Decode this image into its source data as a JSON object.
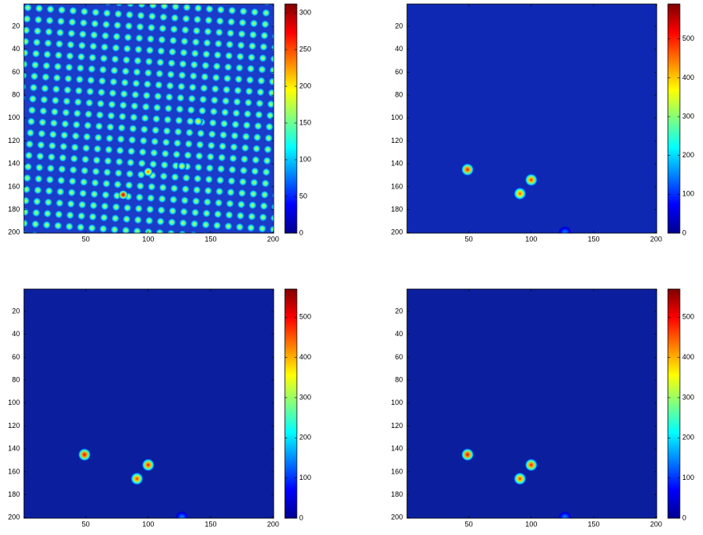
{
  "chart_data": [
    {
      "type": "heatmap",
      "xlim": [
        0.5,
        200.5
      ],
      "ylim": [
        0.5,
        200.5
      ],
      "xticks": [
        50,
        100,
        150,
        200
      ],
      "yticks": [
        20,
        40,
        60,
        80,
        100,
        120,
        140,
        160,
        180,
        200
      ],
      "clim": [
        0,
        312
      ],
      "cticks": [
        0,
        50,
        100,
        150,
        200,
        250,
        300
      ],
      "background": "#1a3cc8",
      "peaks": {
        "x": [
          80,
          100,
          140,
          127
        ],
        "y": [
          167,
          147,
          103,
          142
        ],
        "values": [
          300,
          250,
          200,
          190
        ]
      }
    },
    {
      "type": "heatmap",
      "xlim": [
        0.5,
        200.5
      ],
      "ylim": [
        0.5,
        200.5
      ],
      "xticks": [
        50,
        100,
        150,
        200
      ],
      "yticks": [
        20,
        40,
        60,
        80,
        100,
        120,
        140,
        160,
        180,
        200
      ],
      "clim": [
        0,
        590
      ],
      "cticks": [
        0,
        100,
        200,
        300,
        400,
        500
      ],
      "background": "#0e28b4",
      "peaks": {
        "x": [
          49,
          100,
          91,
          127
        ],
        "y": [
          145,
          154,
          166,
          200
        ],
        "values": [
          520,
          500,
          480,
          150
        ]
      }
    },
    {
      "type": "heatmap",
      "xlim": [
        0.5,
        200.5
      ],
      "ylim": [
        0.5,
        200.5
      ],
      "xticks": [
        50,
        100,
        150,
        200
      ],
      "yticks": [
        20,
        40,
        60,
        80,
        100,
        120,
        140,
        160,
        180,
        200
      ],
      "clim": [
        0,
        570
      ],
      "cticks": [
        0,
        100,
        200,
        300,
        400,
        500
      ],
      "background": "#0b1f9e",
      "peaks": {
        "x": [
          49,
          100,
          91,
          127
        ],
        "y": [
          145,
          154,
          166,
          200
        ],
        "values": [
          520,
          500,
          480,
          150
        ]
      }
    },
    {
      "type": "heatmap",
      "xlim": [
        0.5,
        200.5
      ],
      "ylim": [
        0.5,
        200.5
      ],
      "xticks": [
        50,
        100,
        150,
        200
      ],
      "yticks": [
        20,
        40,
        60,
        80,
        100,
        120,
        140,
        160,
        180,
        200
      ],
      "clim": [
        0,
        570
      ],
      "cticks": [
        0,
        100,
        200,
        300,
        400,
        500
      ],
      "background": "#0b1f9e",
      "peaks": {
        "x": [
          49,
          100,
          91,
          127
        ],
        "y": [
          145,
          154,
          166,
          200
        ],
        "values": [
          520,
          500,
          480,
          150
        ]
      }
    }
  ]
}
